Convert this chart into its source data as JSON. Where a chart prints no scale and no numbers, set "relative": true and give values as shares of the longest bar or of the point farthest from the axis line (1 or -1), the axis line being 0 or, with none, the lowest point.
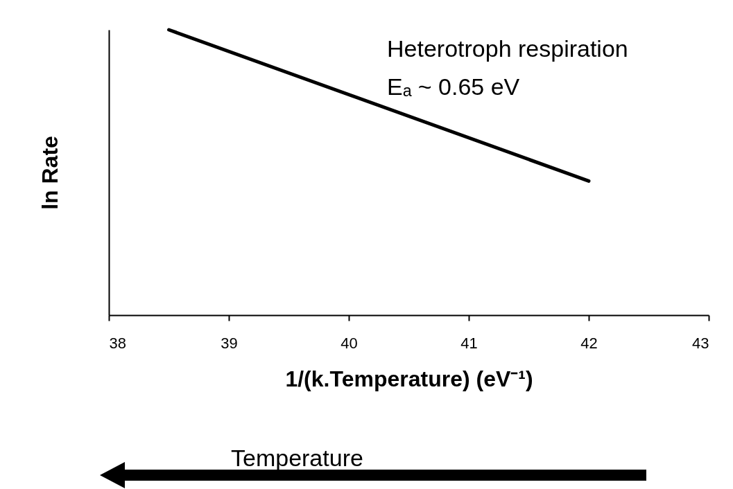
{
  "chart_data": {
    "type": "line",
    "relative": true,
    "xlabel": "1/(k.Temperature) (eV⁻¹)",
    "ylabel": "ln Rate",
    "xlim": [
      38,
      43
    ],
    "xticks": [
      38,
      39,
      40,
      41,
      42,
      43
    ],
    "series": [
      {
        "color": "#000000",
        "x": [
          38.5,
          42
        ],
        "values": [
          1,
          0.47
        ]
      }
    ],
    "annotations": [
      "Heterotroph respiration",
      "Eₐ ~ 0.65 eV",
      "Temperature"
    ],
    "grid": false,
    "marker": "none",
    "line_style": "solid"
  }
}
